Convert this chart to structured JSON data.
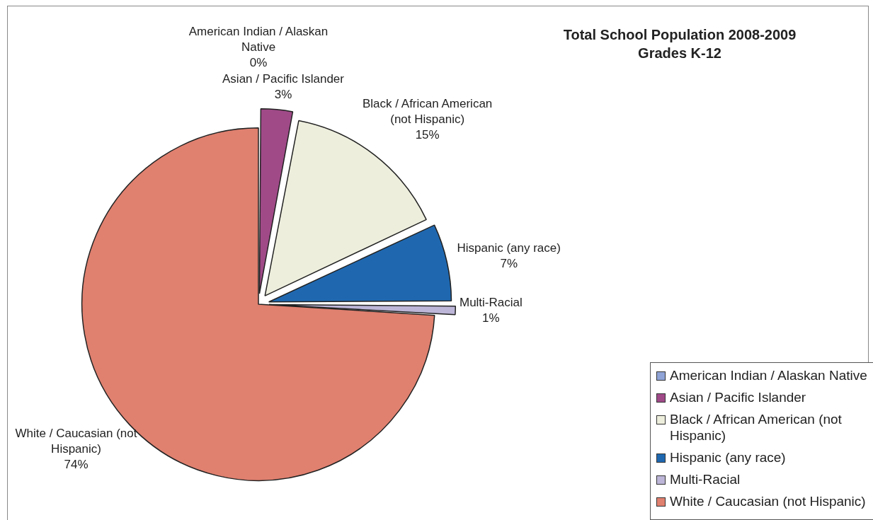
{
  "chart_data": {
    "type": "pie",
    "title": "Total School Population 2008-2009",
    "subtitle": "Grades K-12",
    "categories": [
      "American Indian / Alaskan Native",
      "Asian / Pacific Islander",
      "Black / African American (not Hispanic)",
      "Hispanic (any race)",
      "Multi-Racial",
      "White / Caucasian (not Hispanic)"
    ],
    "values": [
      0,
      3,
      15,
      7,
      1,
      74
    ],
    "value_labels": [
      "0%",
      "3%",
      "15%",
      "7%",
      "1%",
      "74%"
    ],
    "colors": [
      "#8fa3d6",
      "#a04a88",
      "#eeeedd",
      "#1f68b0",
      "#bdb6d8",
      "#e0806f"
    ],
    "legend": "bottom right"
  }
}
